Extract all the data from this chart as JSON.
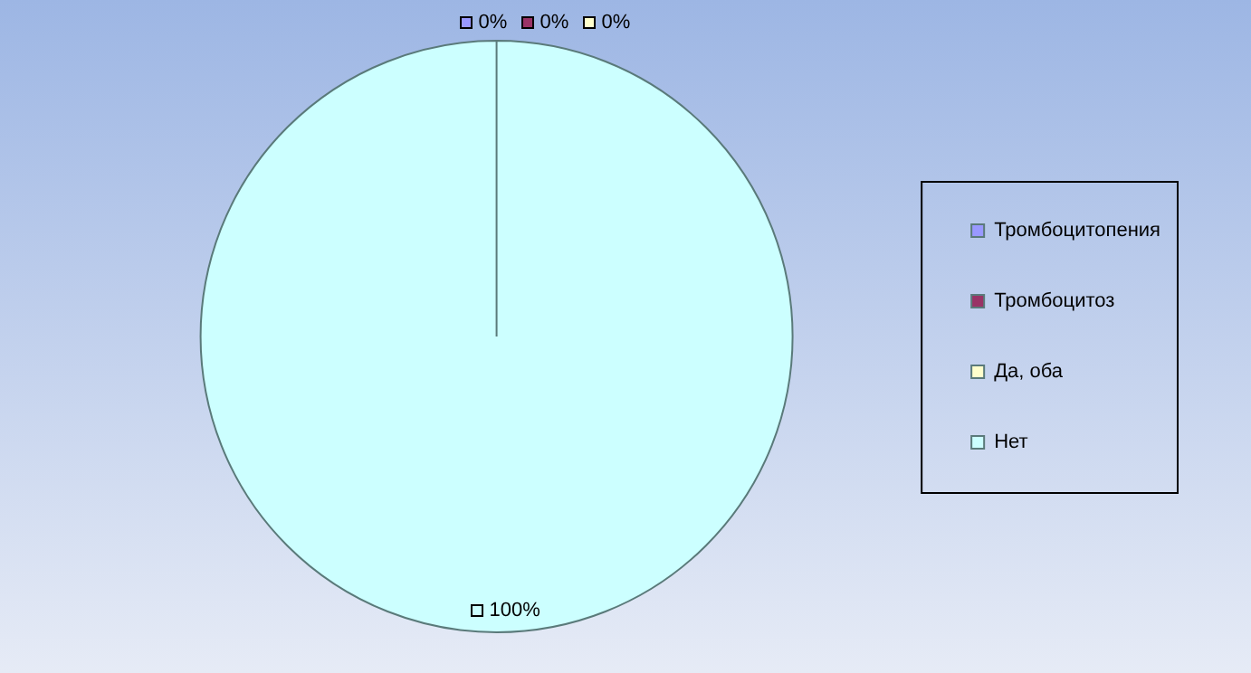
{
  "chart_data": {
    "type": "pie",
    "categories": [
      "Тромбоцитопения",
      "Тромбоцитоз",
      "Да, оба",
      "Нет"
    ],
    "values": [
      0,
      0,
      0,
      100
    ],
    "colors": [
      "#9999ff",
      "#993366",
      "#ffffcc",
      "#ccffff"
    ],
    "value_labels": [
      "0%",
      "0%",
      "0%",
      "100%"
    ],
    "legend": "right"
  }
}
